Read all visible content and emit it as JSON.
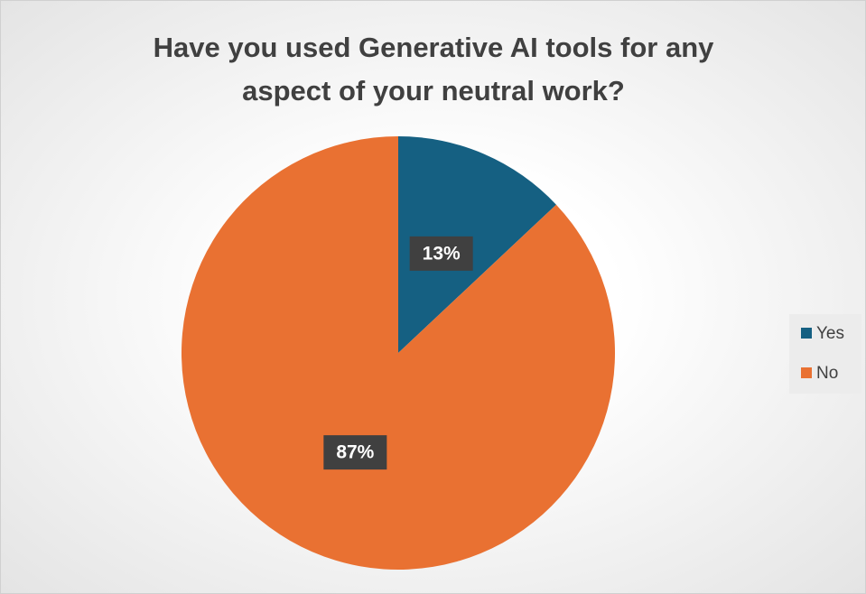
{
  "chart_data": {
    "type": "pie",
    "title": "Have you used Generative AI tools for any aspect of your neutral work?",
    "categories": [
      "Yes",
      "No"
    ],
    "values": [
      13,
      87
    ],
    "value_labels": [
      "13%",
      "87%"
    ],
    "colors": [
      "#156082",
      "#e97132"
    ],
    "legend": "right"
  }
}
